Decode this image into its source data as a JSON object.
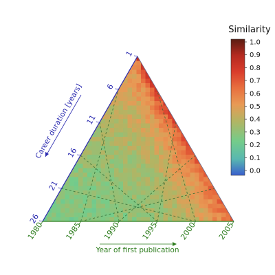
{
  "chart_data": {
    "type": "heatmap",
    "subtype": "ternary",
    "legend": {
      "title": "Similarity",
      "ticks": [
        "1.0",
        "0.9",
        "0.8",
        "0.7",
        "0.6",
        "0.5",
        "0.4",
        "0.3",
        "0.2",
        "0.1",
        "0.0"
      ],
      "range": [
        0,
        1
      ],
      "colorscale": [
        "#3a5fcd",
        "#59b8b0",
        "#74cc8a",
        "#b3b463",
        "#e89a55",
        "#e8703f",
        "#d93d2c",
        "#b52a20",
        "#5a1d12"
      ]
    },
    "bottom_axis": {
      "label": "Year of first publication",
      "ticks": [
        "1980",
        "1985",
        "1990",
        "1995",
        "2000",
        "2005"
      ],
      "color": "#2e7d1e"
    },
    "left_axis": {
      "label": "Career duration [years]",
      "ticks": [
        "1",
        "6",
        "11",
        "16",
        "21",
        "26"
      ],
      "color": "#2b2bb0"
    },
    "grid": true,
    "grid_style": "dashed",
    "pattern": "similarity increases toward the top vertex and right edge (recent starts, short careers); lowest values near the lower-left (early starts, long careers)"
  }
}
